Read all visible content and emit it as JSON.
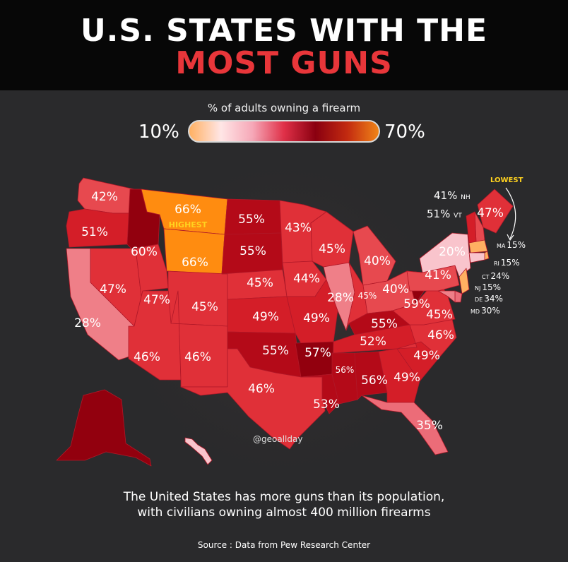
{
  "title": {
    "line1": "U.S. STATES WITH THE",
    "line2": "MOST GUNS"
  },
  "legend": {
    "title": "% of adults owning a firearm",
    "min_label": "10%",
    "max_label": "70%",
    "min": 10,
    "max": 70,
    "gradient_colors": [
      "#ffb062",
      "#ffe6e6",
      "#f6a8b8",
      "#e03048",
      "#8a0010",
      "#c22a10",
      "#f08418"
    ]
  },
  "colors": {
    "background": "#2a2a2c",
    "header": "#070707",
    "title_accent": "#e8363a",
    "highlight": "#ffd21f",
    "highest_fill": "#ff8c10",
    "lowest_fill": "#ffb062"
  },
  "highest_label": "HIGHEST",
  "lowest_label": "LOWEST",
  "credit": "@geoallday",
  "note": {
    "line1": "The United States has more guns than its population,",
    "line2": "with civilians owning almost 400 million firearms"
  },
  "source": "Source : Data from Pew Research Center",
  "states": [
    {
      "abbr": "WA",
      "pct": 42,
      "label": "42%"
    },
    {
      "abbr": "OR",
      "pct": 51,
      "label": "51%"
    },
    {
      "abbr": "CA",
      "pct": 28,
      "label": "28%"
    },
    {
      "abbr": "ID",
      "pct": 60,
      "label": "60%"
    },
    {
      "abbr": "NV",
      "pct": 47,
      "label": "47%"
    },
    {
      "abbr": "MT",
      "pct": 66,
      "label": "66%"
    },
    {
      "abbr": "WY",
      "pct": 66,
      "label": "66%"
    },
    {
      "abbr": "UT",
      "pct": 47,
      "label": "47%"
    },
    {
      "abbr": "AZ",
      "pct": 46,
      "label": "46%"
    },
    {
      "abbr": "CO",
      "pct": 45,
      "label": "45%"
    },
    {
      "abbr": "NM",
      "pct": 46,
      "label": "46%"
    },
    {
      "abbr": "ND",
      "pct": 55,
      "label": "55%"
    },
    {
      "abbr": "SD",
      "pct": 55,
      "label": "55%"
    },
    {
      "abbr": "NE",
      "pct": 45,
      "label": "45%"
    },
    {
      "abbr": "KS",
      "pct": 49,
      "label": "49%"
    },
    {
      "abbr": "OK",
      "pct": 55,
      "label": "55%"
    },
    {
      "abbr": "TX",
      "pct": 46,
      "label": "46%"
    },
    {
      "abbr": "MN",
      "pct": 43,
      "label": "43%"
    },
    {
      "abbr": "IA",
      "pct": 44,
      "label": "44%"
    },
    {
      "abbr": "MO",
      "pct": 49,
      "label": "49%"
    },
    {
      "abbr": "AR",
      "pct": 57,
      "label": "57%"
    },
    {
      "abbr": "LA",
      "pct": 53,
      "label": "53%"
    },
    {
      "abbr": "WI",
      "pct": 45,
      "label": "45%"
    },
    {
      "abbr": "IL",
      "pct": 28,
      "label": "28%"
    },
    {
      "abbr": "MI",
      "pct": 40,
      "label": "40%"
    },
    {
      "abbr": "IN",
      "pct": 45,
      "label": "45%"
    },
    {
      "abbr": "OH",
      "pct": 40,
      "label": "40%"
    },
    {
      "abbr": "KY",
      "pct": 55,
      "label": "55%"
    },
    {
      "abbr": "TN",
      "pct": 52,
      "label": "52%"
    },
    {
      "abbr": "MS",
      "pct": 56,
      "label": "56%"
    },
    {
      "abbr": "AL",
      "pct": 56,
      "label": "56%"
    },
    {
      "abbr": "GA",
      "pct": 49,
      "label": "49%"
    },
    {
      "abbr": "FL",
      "pct": 35,
      "label": "35%"
    },
    {
      "abbr": "SC",
      "pct": 49,
      "label": "49%"
    },
    {
      "abbr": "NC",
      "pct": 46,
      "label": "46%"
    },
    {
      "abbr": "VA",
      "pct": 45,
      "label": "45%"
    },
    {
      "abbr": "WV",
      "pct": 59,
      "label": "59%"
    },
    {
      "abbr": "PA",
      "pct": 41,
      "label": "41%"
    },
    {
      "abbr": "NY",
      "pct": 20,
      "label": "20%"
    },
    {
      "abbr": "ME",
      "pct": 47,
      "label": "47%"
    },
    {
      "abbr": "NH",
      "pct": 41,
      "label": "41%"
    },
    {
      "abbr": "VT",
      "pct": 51,
      "label": "51%"
    },
    {
      "abbr": "MA",
      "pct": 15,
      "label": "15%"
    },
    {
      "abbr": "RI",
      "pct": 15,
      "label": "15%"
    },
    {
      "abbr": "CT",
      "pct": 24,
      "label": "24%"
    },
    {
      "abbr": "NJ",
      "pct": 15,
      "label": "15%"
    },
    {
      "abbr": "DE",
      "pct": 34,
      "label": "34%"
    },
    {
      "abbr": "MD",
      "pct": 30,
      "label": "30%"
    },
    {
      "abbr": "AK",
      "pct": 60
    },
    {
      "abbr": "HI",
      "pct": 20
    }
  ]
}
